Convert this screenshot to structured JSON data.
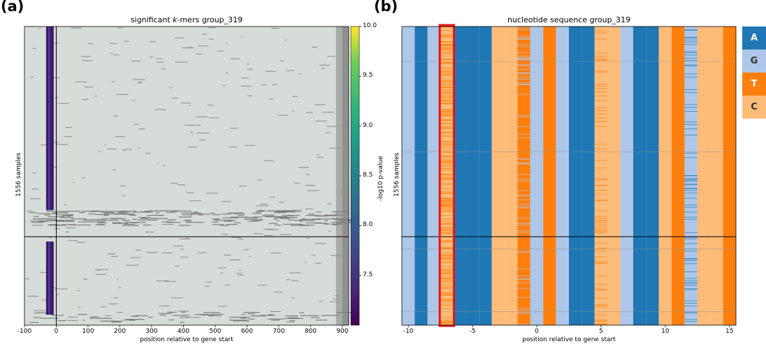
{
  "panel_a": {
    "letter": "(a)",
    "title_prefix": "significant ",
    "title_italic": "k",
    "title_suffix": "-mers group_319",
    "ylabel": "1556 samples",
    "xlabel": "position relative to gene start",
    "colorbar_label": "-log10 p-value"
  },
  "panel_b": {
    "letter": "(b)",
    "title": "nucleotide sequence group_319",
    "ylabel": "1556 samples",
    "xlabel": "position relative to gene start"
  },
  "legend": [
    {
      "label": "A",
      "color": "#1f77b4",
      "text_color": "#ffffff"
    },
    {
      "label": "G",
      "color": "#aec7e8",
      "text_color": "#333333"
    },
    {
      "label": "T",
      "color": "#ff7f0e",
      "text_color": "#ffffff"
    },
    {
      "label": "C",
      "color": "#ffbb78",
      "text_color": "#333333"
    }
  ],
  "chart_data": [
    {
      "type": "heatmap",
      "title": "significant k-mers group_319",
      "xlabel": "position relative to gene start",
      "ylabel": "1556 samples",
      "xlim": [
        -100,
        920
      ],
      "x_ticks": [
        -100,
        0,
        100,
        200,
        300,
        400,
        500,
        600,
        700,
        800,
        900
      ],
      "colorbar": {
        "label": "-log10 p-value",
        "range": [
          7.0,
          10.0
        ],
        "ticks": [
          7.5,
          8.0,
          8.5,
          9.0,
          9.5,
          10.0
        ],
        "colormap": "viridis"
      },
      "significant_kmer_band": {
        "x_start": -32,
        "x_end": -8,
        "value": 7.2
      },
      "vertical_line_x": 0,
      "horizontal_line_sample_fraction": 0.704
    },
    {
      "type": "heatmap",
      "title": "nucleotide sequence group_319",
      "xlabel": "position relative to gene start",
      "ylabel": "1556 samples",
      "xlim": [
        -10.5,
        15.5
      ],
      "x_ticks": [
        -10,
        -5,
        0,
        5,
        10,
        15
      ],
      "positions": [
        -10,
        -9,
        -8,
        -7,
        -6,
        -5,
        -4,
        -3,
        -2,
        -1,
        0,
        1,
        2,
        3,
        4,
        5,
        6,
        7,
        8,
        9,
        10,
        11,
        12,
        13,
        14,
        15
      ],
      "consensus": [
        "G",
        "A",
        "G",
        "C",
        "A",
        "A",
        "A",
        "C",
        "C",
        "T",
        "G",
        "T",
        "G",
        "A",
        "A",
        "C",
        "C",
        "G",
        "A",
        "A",
        "C",
        "T",
        "G",
        "C",
        "C",
        "T"
      ],
      "highlighted_position": -7,
      "horizontal_line_sample_fraction": 0.704
    }
  ]
}
